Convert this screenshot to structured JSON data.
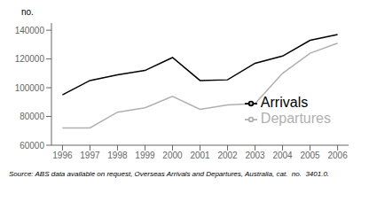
{
  "chart_data": {
    "type": "line",
    "x": [
      1996,
      1997,
      1998,
      1999,
      2000,
      2001,
      2002,
      2003,
      2004,
      2005,
      2006
    ],
    "xlim": [
      1995.6,
      2006.4
    ],
    "xticks": [
      1996,
      1997,
      1998,
      1999,
      2000,
      2001,
      2002,
      2003,
      2004,
      2005,
      2006
    ],
    "ylim": [
      60000,
      145000
    ],
    "yticks": [
      60000,
      80000,
      100000,
      120000,
      140000
    ],
    "ylabel": "no.",
    "annotation": "Source: ABS data available on request, Overseas Arrivals and Departures, Australia, cat.  no.  3401.0.",
    "series": [
      {
        "name": "Arrivals",
        "color": "#000000",
        "values": [
          95000,
          105000,
          109000,
          112000,
          121000,
          105000,
          105500,
          117000,
          122000,
          133000,
          137000
        ]
      },
      {
        "name": "Departures",
        "color": "#b0b0b0",
        "values": [
          72000,
          72000,
          83000,
          86000,
          94000,
          85000,
          88000,
          89000,
          110000,
          124000,
          131000
        ]
      }
    ],
    "legend": "lower right",
    "grid": false
  }
}
